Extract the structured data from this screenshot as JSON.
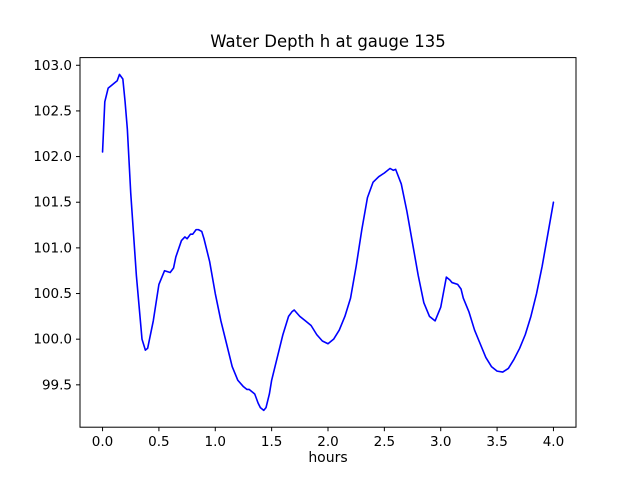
{
  "window": {
    "background": "#ffffff"
  },
  "chart_data": {
    "type": "line",
    "title": "Water Depth h at gauge 135",
    "xlabel": "hours",
    "ylabel": "",
    "series_name": "water depth h",
    "line_color": "#0000ff",
    "grid": false,
    "legend": null,
    "xlim": [
      -0.2,
      4.2
    ],
    "ylim": [
      99.036,
      103.084
    ],
    "xticks": [
      0.0,
      0.5,
      1.0,
      1.5,
      2.0,
      2.5,
      3.0,
      3.5,
      4.0
    ],
    "xtick_labels": [
      "0.0",
      "0.5",
      "1.0",
      "1.5",
      "2.0",
      "2.5",
      "3.0",
      "3.5",
      "4.0"
    ],
    "yticks": [
      99.5,
      100.0,
      100.5,
      101.0,
      101.5,
      102.0,
      102.5,
      103.0
    ],
    "ytick_labels": [
      "99.5",
      "100.0",
      "100.5",
      "101.0",
      "101.5",
      "102.0",
      "102.5",
      "103.0"
    ],
    "x": [
      0.0,
      0.02,
      0.05,
      0.08,
      0.1,
      0.13,
      0.15,
      0.18,
      0.2,
      0.22,
      0.25,
      0.3,
      0.35,
      0.38,
      0.4,
      0.45,
      0.5,
      0.55,
      0.6,
      0.63,
      0.65,
      0.7,
      0.73,
      0.75,
      0.78,
      0.8,
      0.83,
      0.85,
      0.88,
      0.9,
      0.95,
      1.0,
      1.05,
      1.1,
      1.15,
      1.2,
      1.25,
      1.28,
      1.3,
      1.33,
      1.35,
      1.38,
      1.4,
      1.43,
      1.45,
      1.48,
      1.5,
      1.55,
      1.6,
      1.65,
      1.68,
      1.7,
      1.75,
      1.8,
      1.85,
      1.9,
      1.95,
      2.0,
      2.05,
      2.1,
      2.15,
      2.2,
      2.25,
      2.3,
      2.35,
      2.4,
      2.45,
      2.5,
      2.55,
      2.58,
      2.6,
      2.65,
      2.7,
      2.75,
      2.8,
      2.85,
      2.9,
      2.95,
      3.0,
      3.05,
      3.08,
      3.1,
      3.15,
      3.18,
      3.2,
      3.25,
      3.3,
      3.35,
      3.4,
      3.45,
      3.5,
      3.55,
      3.6,
      3.65,
      3.7,
      3.75,
      3.8,
      3.85,
      3.9,
      3.95,
      4.0
    ],
    "y": [
      102.05,
      102.6,
      102.75,
      102.78,
      102.8,
      102.83,
      102.9,
      102.85,
      102.6,
      102.3,
      101.6,
      100.7,
      100.0,
      99.88,
      99.9,
      100.2,
      100.6,
      100.75,
      100.73,
      100.78,
      100.9,
      101.08,
      101.12,
      101.1,
      101.15,
      101.15,
      101.2,
      101.2,
      101.18,
      101.1,
      100.85,
      100.5,
      100.2,
      99.95,
      99.7,
      99.55,
      99.48,
      99.45,
      99.45,
      99.42,
      99.4,
      99.3,
      99.25,
      99.22,
      99.25,
      99.4,
      99.55,
      99.8,
      100.05,
      100.25,
      100.3,
      100.32,
      100.25,
      100.2,
      100.15,
      100.05,
      99.98,
      99.95,
      100.0,
      100.1,
      100.25,
      100.45,
      100.8,
      101.2,
      101.55,
      101.72,
      101.78,
      101.82,
      101.87,
      101.85,
      101.86,
      101.7,
      101.4,
      101.05,
      100.7,
      100.4,
      100.25,
      100.2,
      100.35,
      100.68,
      100.65,
      100.62,
      100.6,
      100.55,
      100.45,
      100.3,
      100.1,
      99.95,
      99.8,
      99.7,
      99.65,
      99.64,
      99.68,
      99.78,
      99.9,
      100.05,
      100.25,
      100.5,
      100.8,
      101.15,
      101.5
    ]
  },
  "colors": {
    "line": "#0000ff",
    "axis": "#000000",
    "background": "#ffffff"
  }
}
